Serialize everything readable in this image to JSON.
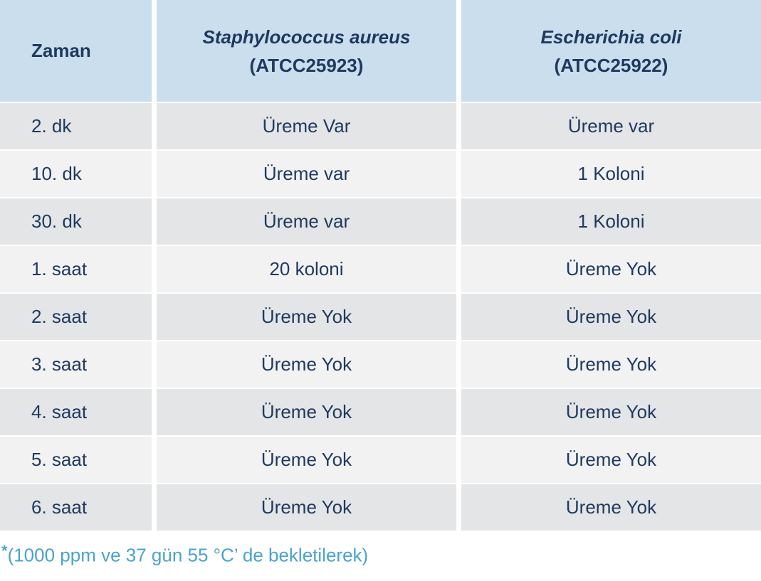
{
  "table": {
    "header": {
      "col_time": "Zaman",
      "col_sa_species": "Staphylococcus aureus",
      "col_sa_code": "(ATCC25923)",
      "col_ec_species": "Escherichia coli",
      "col_ec_code": "(ATCC25922)"
    },
    "rows": [
      {
        "time": "2. dk",
        "sa": "Üreme Var",
        "ec": "Üreme var"
      },
      {
        "time": "10. dk",
        "sa": "Üreme var",
        "ec": "1 Koloni"
      },
      {
        "time": "30. dk",
        "sa": "Üreme var",
        "ec": "1 Koloni"
      },
      {
        "time": "1. saat",
        "sa": "20 koloni",
        "ec": "Üreme Yok"
      },
      {
        "time": "2. saat",
        "sa": "Üreme Yok",
        "ec": "Üreme Yok"
      },
      {
        "time": "3. saat",
        "sa": "Üreme Yok",
        "ec": "Üreme Yok"
      },
      {
        "time": "4. saat",
        "sa": "Üreme Yok",
        "ec": "Üreme Yok"
      },
      {
        "time": "5. saat",
        "sa": "Üreme Yok",
        "ec": "Üreme Yok"
      },
      {
        "time": "6. saat",
        "sa": "Üreme Yok",
        "ec": "Üreme Yok"
      }
    ]
  },
  "footnote": {
    "marker": "*",
    "text": "(1000 ppm ve 37 gün 55 °C’ de bekletilerek)"
  },
  "colors": {
    "header_bg": "#cbdeed",
    "row_odd_bg": "#e4e5e7",
    "row_even_bg": "#f2f2f3",
    "text": "#1e3a5f",
    "footnote": "#4ba3cf"
  }
}
